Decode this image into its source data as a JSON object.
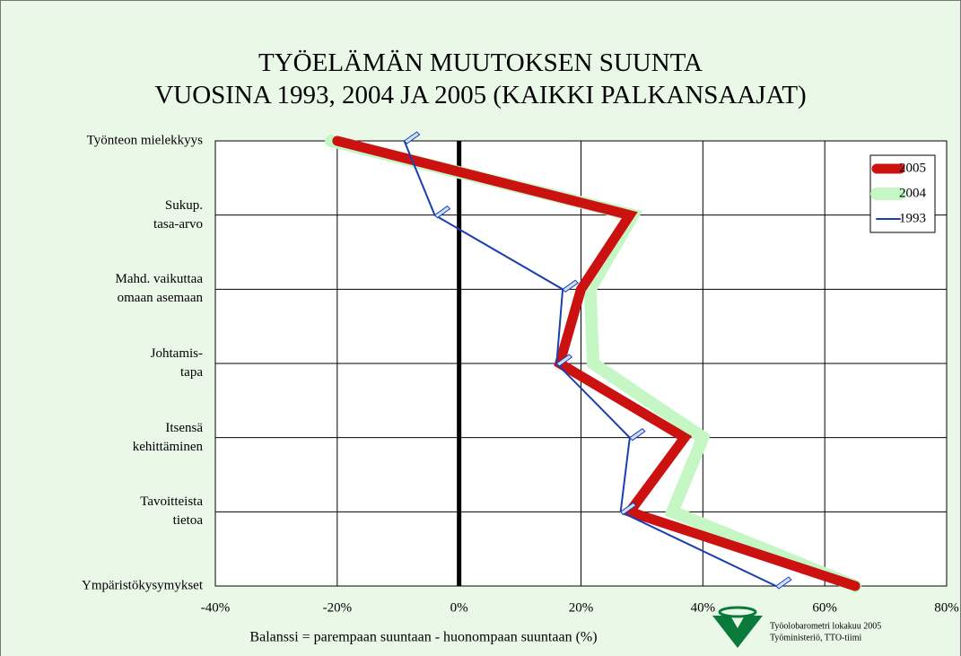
{
  "chart_data": {
    "type": "line",
    "title": "TYÖELÄMÄN MUUTOKSEN SUUNTA\nVUOSINA 1993, 2004 JA 2005 (KAIKKI PALKANSAAJAT)",
    "xlabel": "Balanssi = parempaan suuntaan - huonompaan suuntaan (%)",
    "categories": [
      "Työnteon mielekkyys",
      "Sukup.\ntasa-arvo",
      "Mahd. vaikuttaa\nomaan asemaan",
      "Johtamis-\ntapa",
      "Itsensä\nkehittäminen",
      "Tavoitteista\ntietoa",
      "Ympäristökysymykset"
    ],
    "series": [
      {
        "name": "2005",
        "color": "#cc1111",
        "values": [
          -20,
          28,
          20,
          16.5,
          37,
          28,
          65
        ]
      },
      {
        "name": "2004",
        "color": "#c4f7c4",
        "values": [
          -21,
          28.5,
          21.5,
          22,
          40,
          35,
          65
        ]
      },
      {
        "name": "1993",
        "color": "#1a3fb0",
        "values": [
          -9,
          -4,
          17,
          16,
          28,
          26.5,
          52
        ]
      }
    ],
    "xlim": [
      -40,
      80
    ],
    "xticks": [
      {
        "value": -40,
        "label": "-40%"
      },
      {
        "value": -20,
        "label": "-20%"
      },
      {
        "value": 0,
        "label": "0%"
      },
      {
        "value": 20,
        "label": "20%"
      },
      {
        "value": 40,
        "label": "40%"
      },
      {
        "value": 60,
        "label": "60%"
      },
      {
        "value": 80,
        "label": "80%"
      }
    ],
    "grid": true,
    "legend": "upper right",
    "source": [
      "Työolobarometri lokakuu 2005",
      "Työministeriö, TTO-tiimi"
    ]
  }
}
